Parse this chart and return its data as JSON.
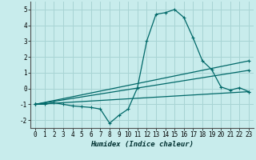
{
  "xlabel": "Humidex (Indice chaleur)",
  "bg_color": "#c8ecec",
  "grid_color": "#a8d4d4",
  "line_color": "#006868",
  "xlim": [
    -0.5,
    23.5
  ],
  "ylim": [
    -2.5,
    5.5
  ],
  "xticks": [
    0,
    1,
    2,
    3,
    4,
    5,
    6,
    7,
    8,
    9,
    10,
    11,
    12,
    13,
    14,
    15,
    16,
    17,
    18,
    19,
    20,
    21,
    22,
    23
  ],
  "yticks": [
    -2,
    -1,
    0,
    1,
    2,
    3,
    4,
    5
  ],
  "series": [
    {
      "x": [
        0,
        1,
        2,
        3,
        4,
        5,
        6,
        7,
        8,
        9,
        10,
        11,
        12,
        13,
        14,
        15,
        16,
        17,
        18,
        19,
        20,
        21,
        22,
        23
      ],
      "y": [
        -1.0,
        -1.0,
        -0.9,
        -1.0,
        -1.1,
        -1.15,
        -1.2,
        -1.3,
        -2.2,
        -1.7,
        -1.3,
        0.05,
        3.0,
        4.7,
        4.8,
        5.0,
        4.5,
        3.2,
        1.75,
        1.2,
        0.1,
        -0.1,
        0.05,
        -0.2
      ]
    },
    {
      "x": [
        0,
        23
      ],
      "y": [
        -1.0,
        1.75
      ]
    },
    {
      "x": [
        0,
        23
      ],
      "y": [
        -1.0,
        1.15
      ]
    },
    {
      "x": [
        0,
        23
      ],
      "y": [
        -1.0,
        -0.2
      ]
    }
  ]
}
